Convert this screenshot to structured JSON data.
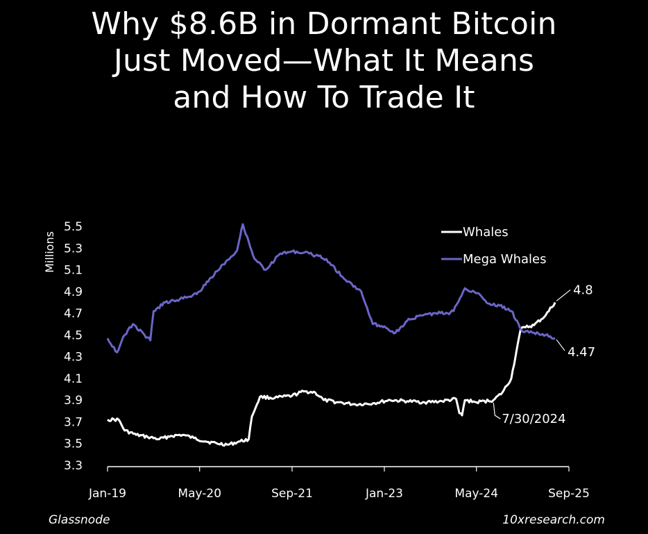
{
  "title": {
    "line1": "Why $8.6B in Dormant Bitcoin",
    "line2": "Just Moved—What It Means",
    "line3": "and How To Trade It"
  },
  "footer": {
    "source": "Glassnode",
    "brand": "10xresearch.com"
  },
  "colors": {
    "background": "#000000",
    "whales": "#ffffff",
    "mega_whales": "#6a66c8",
    "axis": "#ffffff"
  },
  "chart_data": {
    "type": "line",
    "ylabel": "Millions",
    "xlabel": "",
    "ylim": [
      3.3,
      5.5
    ],
    "yticks": [
      3.3,
      3.5,
      3.7,
      3.9,
      4.1,
      4.3,
      4.5,
      4.7,
      4.9,
      5.1,
      5.3,
      5.5
    ],
    "xticks": [
      "Jan-19",
      "May-20",
      "Sep-21",
      "Jan-23",
      "May-24",
      "Sep-25"
    ],
    "xtick_dates": [
      "2019-01-01",
      "2020-05-01",
      "2021-09-01",
      "2023-01-01",
      "2024-05-01",
      "2025-09-01"
    ],
    "xlim": [
      "2019-01-01",
      "2025-09-01"
    ],
    "legend": "top-right",
    "grid": false,
    "series": [
      {
        "name": "Whales",
        "color": "#ffffff",
        "points": [
          [
            "2019-01-01",
            3.72
          ],
          [
            "2019-03-01",
            3.72
          ],
          [
            "2019-04-01",
            3.62
          ],
          [
            "2019-06-01",
            3.58
          ],
          [
            "2019-08-01",
            3.56
          ],
          [
            "2019-10-01",
            3.54
          ],
          [
            "2019-12-01",
            3.57
          ],
          [
            "2020-02-01",
            3.58
          ],
          [
            "2020-04-01",
            3.55
          ],
          [
            "2020-06-01",
            3.52
          ],
          [
            "2020-08-01",
            3.5
          ],
          [
            "2020-10-01",
            3.49
          ],
          [
            "2020-12-01",
            3.52
          ],
          [
            "2021-01-15",
            3.54
          ],
          [
            "2021-02-01",
            3.75
          ],
          [
            "2021-03-15",
            3.93
          ],
          [
            "2021-06-01",
            3.92
          ],
          [
            "2021-09-01",
            3.94
          ],
          [
            "2021-11-01",
            3.98
          ],
          [
            "2022-01-01",
            3.97
          ],
          [
            "2022-02-15",
            3.9
          ],
          [
            "2022-05-01",
            3.88
          ],
          [
            "2022-08-01",
            3.86
          ],
          [
            "2022-11-01",
            3.87
          ],
          [
            "2023-02-01",
            3.9
          ],
          [
            "2023-05-01",
            3.89
          ],
          [
            "2023-08-01",
            3.88
          ],
          [
            "2023-11-01",
            3.89
          ],
          [
            "2024-01-15",
            3.91
          ],
          [
            "2024-02-01",
            3.78
          ],
          [
            "2024-02-15",
            3.76
          ],
          [
            "2024-03-01",
            3.9
          ],
          [
            "2024-05-01",
            3.88
          ],
          [
            "2024-07-30",
            3.9
          ],
          [
            "2024-09-15",
            3.97
          ],
          [
            "2024-11-01",
            4.1
          ],
          [
            "2024-12-01",
            4.38
          ],
          [
            "2024-12-20",
            4.55
          ],
          [
            "2025-01-15",
            4.57
          ],
          [
            "2025-03-01",
            4.59
          ],
          [
            "2025-05-01",
            4.68
          ],
          [
            "2025-06-20",
            4.8
          ]
        ]
      },
      {
        "name": "Mega Whales",
        "color": "#6a66c8",
        "points": [
          [
            "2019-01-01",
            4.47
          ],
          [
            "2019-02-20",
            4.34
          ],
          [
            "2019-04-01",
            4.5
          ],
          [
            "2019-05-15",
            4.6
          ],
          [
            "2019-07-15",
            4.5
          ],
          [
            "2019-08-15",
            4.45
          ],
          [
            "2019-09-01",
            4.72
          ],
          [
            "2019-11-01",
            4.8
          ],
          [
            "2020-01-01",
            4.82
          ],
          [
            "2020-03-01",
            4.85
          ],
          [
            "2020-05-01",
            4.9
          ],
          [
            "2020-07-01",
            5.03
          ],
          [
            "2020-09-01",
            5.15
          ],
          [
            "2020-11-15",
            5.28
          ],
          [
            "2020-12-15",
            5.52
          ],
          [
            "2021-02-15",
            5.2
          ],
          [
            "2021-04-15",
            5.1
          ],
          [
            "2021-07-01",
            5.25
          ],
          [
            "2021-09-01",
            5.27
          ],
          [
            "2021-12-01",
            5.25
          ],
          [
            "2022-03-01",
            5.2
          ],
          [
            "2022-06-01",
            5.02
          ],
          [
            "2022-09-01",
            4.9
          ],
          [
            "2022-11-01",
            4.6
          ],
          [
            "2023-01-01",
            4.58
          ],
          [
            "2023-03-01",
            4.52
          ],
          [
            "2023-05-01",
            4.63
          ],
          [
            "2023-07-15",
            4.68
          ],
          [
            "2023-10-01",
            4.7
          ],
          [
            "2023-12-01",
            4.7
          ],
          [
            "2024-01-01",
            4.72
          ],
          [
            "2024-03-01",
            4.93
          ],
          [
            "2024-05-15",
            4.88
          ],
          [
            "2024-07-01",
            4.79
          ],
          [
            "2024-09-01",
            4.77
          ],
          [
            "2024-11-01",
            4.72
          ],
          [
            "2025-01-01",
            4.53
          ],
          [
            "2025-03-01",
            4.52
          ],
          [
            "2025-05-01",
            4.5
          ],
          [
            "2025-06-20",
            4.47
          ]
        ]
      }
    ],
    "annotations": [
      {
        "text": "4.8",
        "series": "Whales",
        "at": "2025-06-20"
      },
      {
        "text": "4.47",
        "series": "Mega Whales",
        "at": "2025-06-20"
      },
      {
        "text": "7/30/2024",
        "series": "Whales",
        "at": "2024-07-30"
      }
    ]
  }
}
